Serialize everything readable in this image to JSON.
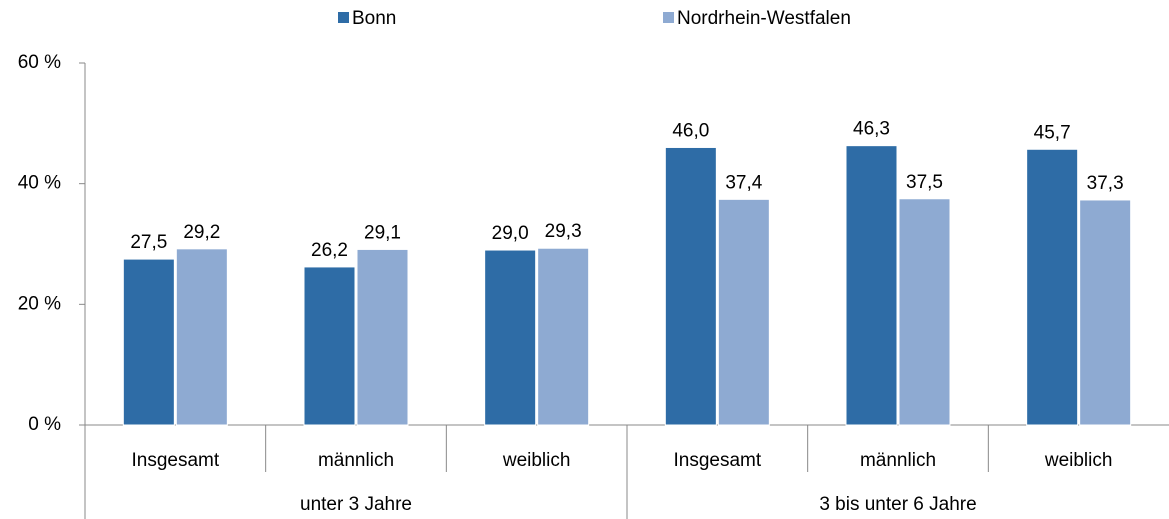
{
  "chart_data": {
    "type": "bar",
    "category_groups": [
      "unter 3 Jahre",
      "3 bis unter 6 Jahre"
    ],
    "categories": [
      "Insgesamt",
      "männlich",
      "weiblich",
      "Insgesamt",
      "männlich",
      "weiblich"
    ],
    "series": [
      {
        "name": "Bonn",
        "color": "#2e6ca6",
        "values": [
          27.5,
          26.2,
          29.0,
          46.0,
          46.3,
          45.7
        ],
        "value_labels": [
          "27,5",
          "26,2",
          "29,0",
          "46,0",
          "46,3",
          "45,7"
        ]
      },
      {
        "name": "Nordrhein-Westfalen",
        "color": "#8eaad2",
        "values": [
          29.2,
          29.1,
          29.3,
          37.4,
          37.5,
          37.3
        ],
        "value_labels": [
          "29,2",
          "29,1",
          "29,3",
          "37,4",
          "37,5",
          "37,3"
        ]
      }
    ],
    "ylim": [
      0,
      60
    ],
    "yticks": [
      {
        "value": 0,
        "label": "0 %"
      },
      {
        "value": 20,
        "label": "20 %"
      },
      {
        "value": 40,
        "label": "40 %"
      },
      {
        "value": 60,
        "label": "60 %"
      }
    ],
    "legend": "top"
  }
}
